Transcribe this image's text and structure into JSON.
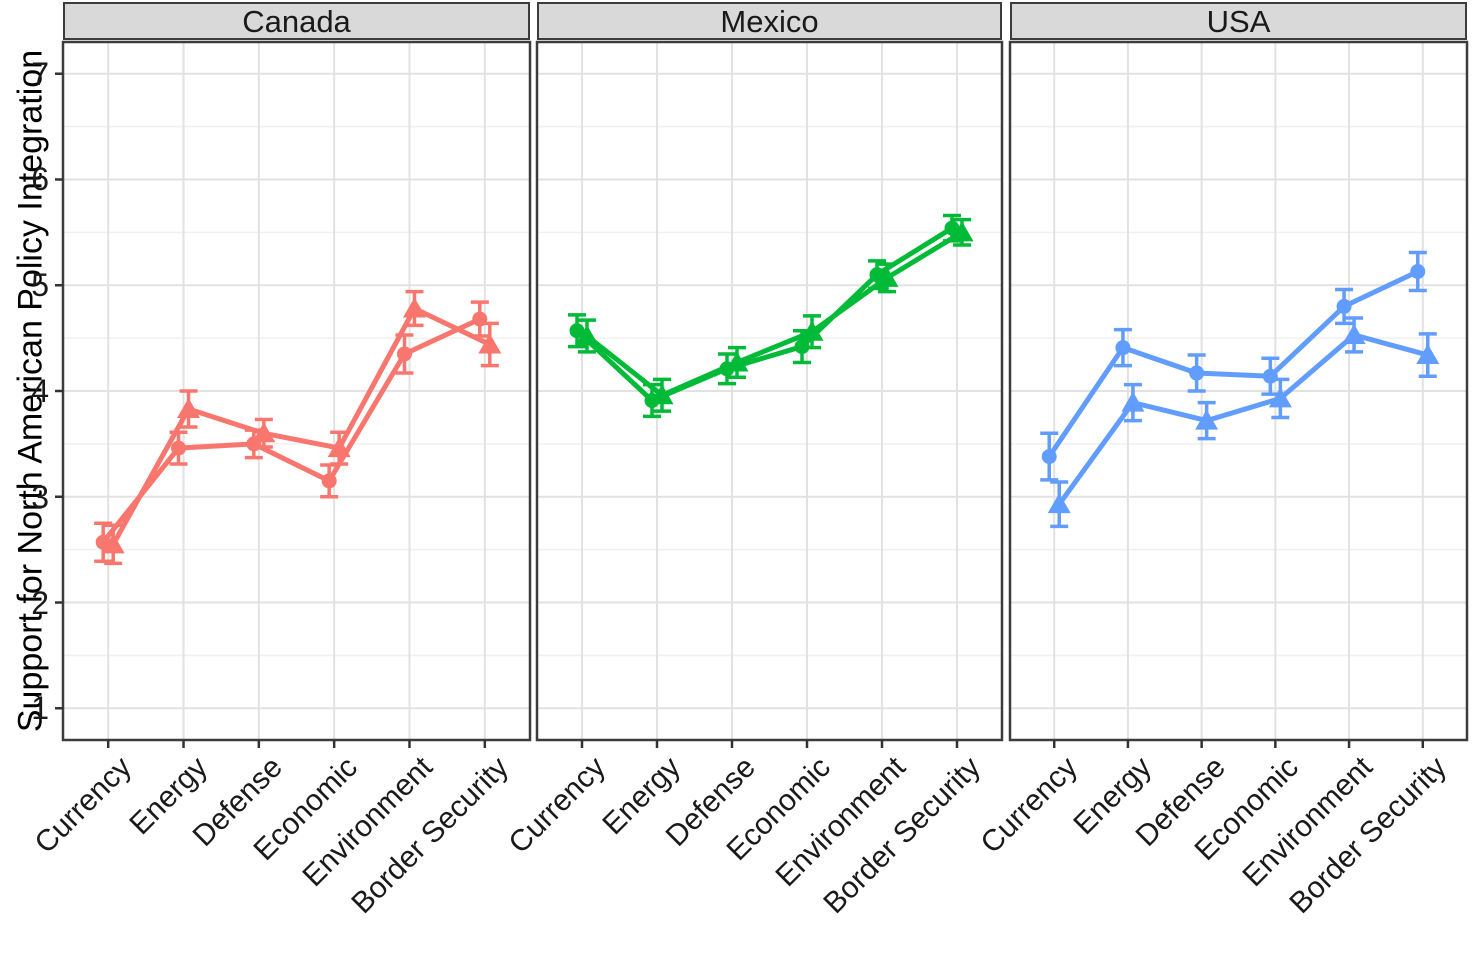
{
  "figure": {
    "y_axis_title": "Support for North American Policy Integration"
  },
  "chart_data": {
    "type": "line",
    "title": "",
    "xlabel": "",
    "ylabel": "Support for North American Policy Integration",
    "categories": [
      "Currency",
      "Energy",
      "Defense",
      "Economic",
      "Environment",
      "Border Security"
    ],
    "yticks": [
      1,
      2,
      3,
      4,
      5,
      6,
      7
    ],
    "ylim": [
      0.7,
      7.3
    ],
    "grid": "major-and-minor-horizontal, major-vertical",
    "legend": "none",
    "error_bars": true,
    "facets": [
      {
        "label": "Canada",
        "color": "#F8766D",
        "series": [
          {
            "name": "circle-series",
            "marker": "circle",
            "values": [
              2.57,
              3.46,
              3.5,
              3.15,
              4.35,
              4.68
            ],
            "errors": [
              0.18,
              0.15,
              0.13,
              0.15,
              0.18,
              0.16
            ]
          },
          {
            "name": "triangle-series",
            "marker": "triangle",
            "values": [
              2.55,
              3.83,
              3.6,
              3.46,
              4.78,
              4.44
            ],
            "errors": [
              0.18,
              0.17,
              0.13,
              0.15,
              0.16,
              0.2
            ]
          }
        ]
      },
      {
        "label": "Mexico",
        "color": "#00BA38",
        "series": [
          {
            "name": "circle-series",
            "marker": "circle",
            "values": [
              4.57,
              3.91,
              4.21,
              4.42,
              5.1,
              5.54
            ],
            "errors": [
              0.15,
              0.15,
              0.14,
              0.15,
              0.13,
              0.12
            ]
          },
          {
            "name": "triangle-series",
            "marker": "triangle",
            "values": [
              4.52,
              3.96,
              4.27,
              4.56,
              5.07,
              5.5
            ],
            "errors": [
              0.15,
              0.15,
              0.14,
              0.15,
              0.13,
              0.12
            ]
          }
        ]
      },
      {
        "label": "USA",
        "color": "#619CFF",
        "series": [
          {
            "name": "circle-series",
            "marker": "circle",
            "values": [
              3.38,
              4.41,
              4.17,
              4.14,
              4.8,
              5.13
            ],
            "errors": [
              0.22,
              0.17,
              0.17,
              0.17,
              0.16,
              0.18
            ]
          },
          {
            "name": "triangle-series",
            "marker": "triangle",
            "values": [
              2.93,
              3.89,
              3.72,
              3.93,
              4.53,
              4.34
            ],
            "errors": [
              0.21,
              0.17,
              0.17,
              0.18,
              0.16,
              0.2
            ]
          }
        ]
      }
    ],
    "style": {
      "header_bg": "#D9D9D9",
      "panel_border": "#3C3C3C",
      "grid_major": "#E2E2E2",
      "grid_minor": "#F0F0F0",
      "tick_color": "#333333"
    }
  }
}
